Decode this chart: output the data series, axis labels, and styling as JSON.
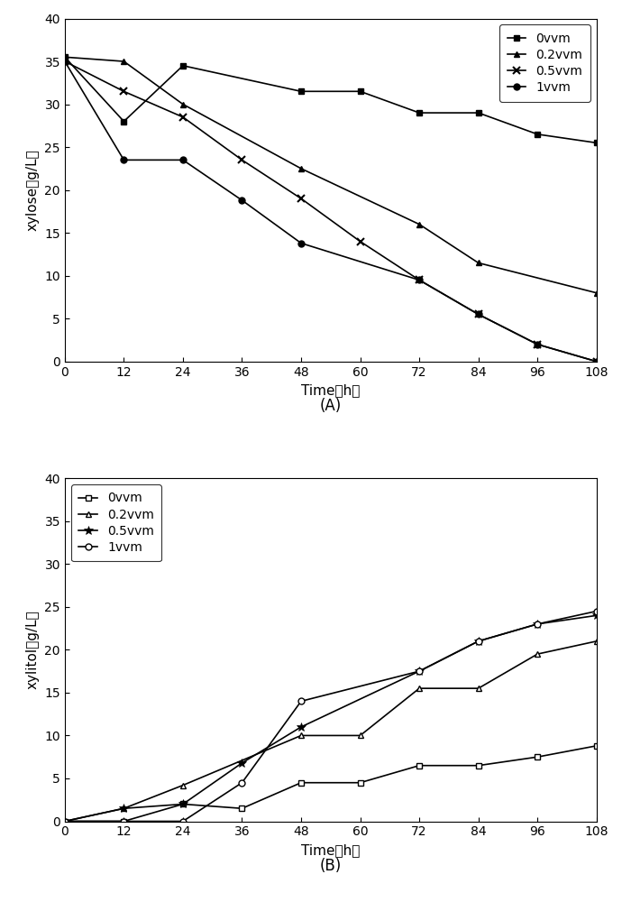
{
  "time_A_0vvm": [
    0,
    12,
    24,
    48,
    60,
    72,
    84,
    96,
    108
  ],
  "A_0vvm_y": [
    35.5,
    28.0,
    34.5,
    31.5,
    31.5,
    29.0,
    29.0,
    26.5,
    25.5
  ],
  "time_A_02vvm": [
    0,
    12,
    24,
    48,
    72,
    84,
    108
  ],
  "A_02vvm_y": [
    35.5,
    35.0,
    30.0,
    22.5,
    16.0,
    11.5,
    8.0
  ],
  "time_A_05vvm": [
    0,
    12,
    24,
    36,
    48,
    60,
    72,
    84,
    96,
    108
  ],
  "A_05vvm_y": [
    35.0,
    31.5,
    28.5,
    23.5,
    19.0,
    14.0,
    9.5,
    5.5,
    2.0,
    0.0
  ],
  "time_A_1vvm": [
    0,
    12,
    24,
    36,
    48,
    72,
    84,
    96,
    108
  ],
  "A_1vvm_y": [
    35.0,
    23.5,
    23.5,
    18.8,
    13.8,
    9.5,
    5.5,
    2.0,
    0.0
  ],
  "time_B_0vvm": [
    0,
    12,
    24,
    36,
    48,
    60,
    72,
    84,
    96,
    108
  ],
  "B_0vvm_y": [
    0.0,
    0.0,
    2.0,
    1.5,
    4.5,
    4.5,
    6.5,
    6.5,
    7.5,
    8.8
  ],
  "time_B_02vvm": [
    0,
    12,
    24,
    48,
    60,
    72,
    84,
    96,
    108
  ],
  "B_02vvm_y": [
    0.0,
    1.5,
    4.2,
    10.0,
    10.0,
    15.5,
    15.5,
    19.5,
    21.0
  ],
  "time_B_05vvm": [
    0,
    12,
    24,
    36,
    48,
    72,
    84,
    96,
    108
  ],
  "B_05vvm_y": [
    0.0,
    1.5,
    2.0,
    6.8,
    11.0,
    17.5,
    21.0,
    23.0,
    24.0
  ],
  "time_B_1vvm": [
    0,
    12,
    24,
    36,
    48,
    72,
    84,
    96,
    108
  ],
  "B_1vvm_y": [
    0.0,
    0.0,
    0.0,
    4.5,
    14.0,
    17.5,
    21.0,
    23.0,
    24.5
  ],
  "xlabel": "Time（h）",
  "ylabel_A": "xylose（g/L）",
  "ylabel_B": "xylitol（g/L）",
  "label_A": "(A)",
  "label_B": "(B)",
  "legend_0vvm": "0vvm",
  "legend_02vvm": "0.2vvm",
  "legend_05vvm": "0.5vvm",
  "legend_1vvm": "1vvm",
  "ylim_A": [
    0,
    40
  ],
  "ylim_B": [
    0,
    40
  ],
  "yticks": [
    0,
    5,
    10,
    15,
    20,
    25,
    30,
    35,
    40
  ],
  "xticks": [
    0,
    12,
    24,
    36,
    48,
    60,
    72,
    84,
    96,
    108
  ],
  "color": "black"
}
